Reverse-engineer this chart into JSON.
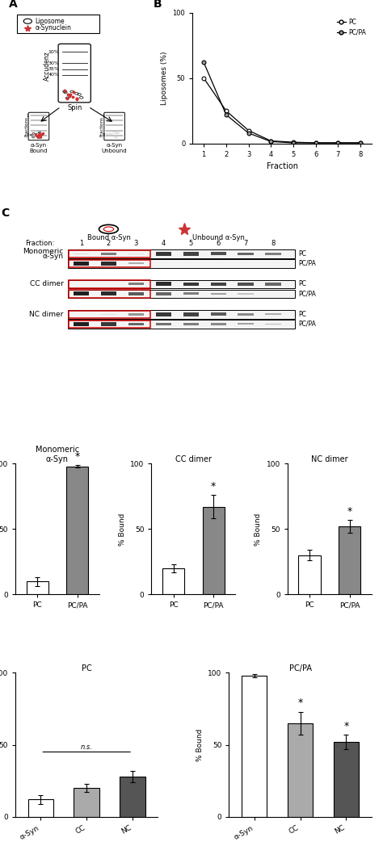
{
  "panel_B": {
    "fractions": [
      1,
      2,
      3,
      4,
      5,
      6,
      7,
      8
    ],
    "PC": [
      50,
      25,
      10,
      2,
      1,
      0.5,
      0.5,
      0.5
    ],
    "PCPA": [
      62,
      22,
      8,
      1.5,
      0.5,
      0.5,
      0.5,
      0.5
    ],
    "xlabel": "Fraction",
    "ylabel": "Liposomes (%)",
    "ylim": [
      0,
      100
    ],
    "yticks": [
      0,
      50,
      100
    ]
  },
  "panel_C": {
    "mono_PC": [
      0.15,
      0.55,
      0.12,
      0.85,
      0.8,
      0.75,
      0.65,
      0.55
    ],
    "mono_PCPA": [
      0.95,
      0.9,
      0.35,
      0.0,
      0.0,
      0.0,
      0.0,
      0.0
    ],
    "cc_PC": [
      0.0,
      0.12,
      0.55,
      0.9,
      0.85,
      0.8,
      0.75,
      0.65
    ],
    "cc_PCPA": [
      0.95,
      0.9,
      0.7,
      0.65,
      0.55,
      0.4,
      0.25,
      0.08
    ],
    "nc_PC": [
      0.05,
      0.12,
      0.45,
      0.85,
      0.8,
      0.7,
      0.5,
      0.35
    ],
    "nc_PCPA": [
      0.95,
      0.85,
      0.65,
      0.6,
      0.55,
      0.5,
      0.4,
      0.3
    ]
  },
  "panel_D": {
    "titles": [
      "Monomeric\nα-Syn",
      "CC dimer",
      "NC dimer"
    ],
    "monomer": {
      "PC": 10,
      "PCPA": 98,
      "PC_err": 3.5,
      "PCPA_err": 1
    },
    "CC": {
      "PC": 20,
      "PCPA": 67,
      "PC_err": 3,
      "PCPA_err": 9
    },
    "NC": {
      "PC": 30,
      "PCPA": 52,
      "PC_err": 4,
      "PCPA_err": 5
    },
    "ylabel": "% Bound",
    "ylim": [
      0,
      100
    ],
    "yticks": [
      0,
      50,
      100
    ],
    "bar_color_PC": "#ffffff",
    "bar_color_PCPA": "#888888"
  },
  "panel_E": {
    "title_left": "PC",
    "title_right": "PC/PA",
    "categories": [
      "α-Syn",
      "CC",
      "NC"
    ],
    "PC_vals": [
      12,
      20,
      28
    ],
    "PC_errs": [
      3,
      3,
      4
    ],
    "PCPA_vals": [
      98,
      65,
      52
    ],
    "PCPA_errs": [
      1,
      8,
      5
    ],
    "PC_colors": [
      "#ffffff",
      "#aaaaaa",
      "#555555"
    ],
    "PCPA_colors": [
      "#ffffff",
      "#aaaaaa",
      "#555555"
    ],
    "ylabel": "% Bound",
    "ylim": [
      0,
      100
    ],
    "yticks": [
      0,
      50,
      100
    ]
  }
}
